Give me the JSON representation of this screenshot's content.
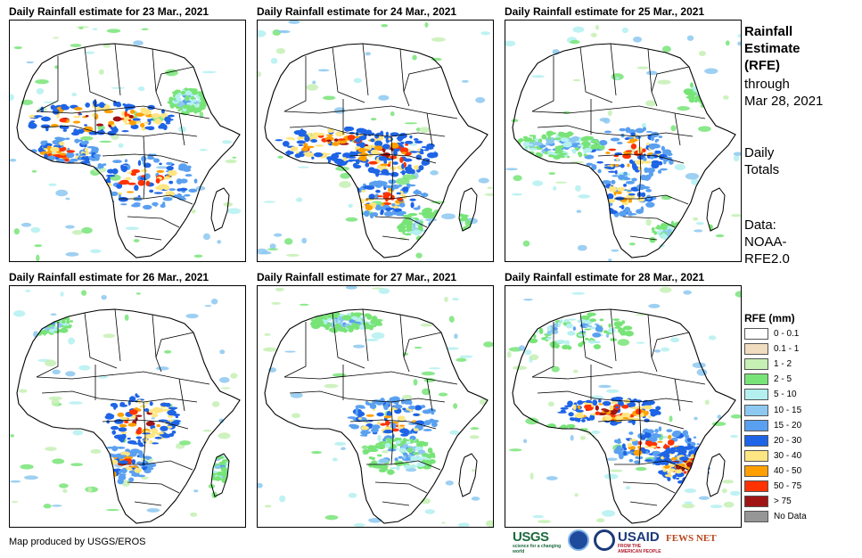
{
  "panels": [
    {
      "title": "Daily Rainfall estimate for 23 Mar., 2021"
    },
    {
      "title": "Daily Rainfall estimate for 24 Mar., 2021"
    },
    {
      "title": "Daily Rainfall estimate for 25 Mar., 2021"
    },
    {
      "title": "Daily Rainfall estimate for 26 Mar., 2021"
    },
    {
      "title": "Daily Rainfall estimate for 27 Mar., 2021"
    },
    {
      "title": "Daily Rainfall estimate for 28 Mar., 2021"
    }
  ],
  "side": {
    "heading_lines": [
      "Rainfall",
      "Estimate",
      "(RFE)"
    ],
    "through_lines": [
      "through",
      "Mar 28, 2021"
    ],
    "totals_lines": [
      "Daily",
      "Totals"
    ],
    "data_lines": [
      "Data:",
      "NOAA-",
      "RFE2.0"
    ]
  },
  "legend": {
    "title": "RFE (mm)",
    "items": [
      {
        "label": "0 - 0.1",
        "color": "#ffffff"
      },
      {
        "label": "0.1 - 1",
        "color": "#f0dcbe"
      },
      {
        "label": "1 - 2",
        "color": "#c6f0b4"
      },
      {
        "label": "2 - 5",
        "color": "#78e478"
      },
      {
        "label": "5 - 10",
        "color": "#b4f0f0"
      },
      {
        "label": "10 - 15",
        "color": "#8cc8f0"
      },
      {
        "label": "15 - 20",
        "color": "#5aa0f0"
      },
      {
        "label": "20 - 30",
        "color": "#1e64e6"
      },
      {
        "label": "30 - 40",
        "color": "#ffe682"
      },
      {
        "label": "40 - 50",
        "color": "#ffa000"
      },
      {
        "label": "50 - 75",
        "color": "#ff3200"
      },
      {
        "label": "> 75",
        "color": "#a01414"
      },
      {
        "label": "No Data",
        "color": "#969696"
      }
    ]
  },
  "credit": "Map produced by USGS/EROS",
  "logos": {
    "usgs": "USGS",
    "usgs_tag": "science for a changing world",
    "usaid": "USAID",
    "usaid_tag": "FROM THE AMERICAN PEOPLE",
    "fews": "FEWS NET"
  }
}
